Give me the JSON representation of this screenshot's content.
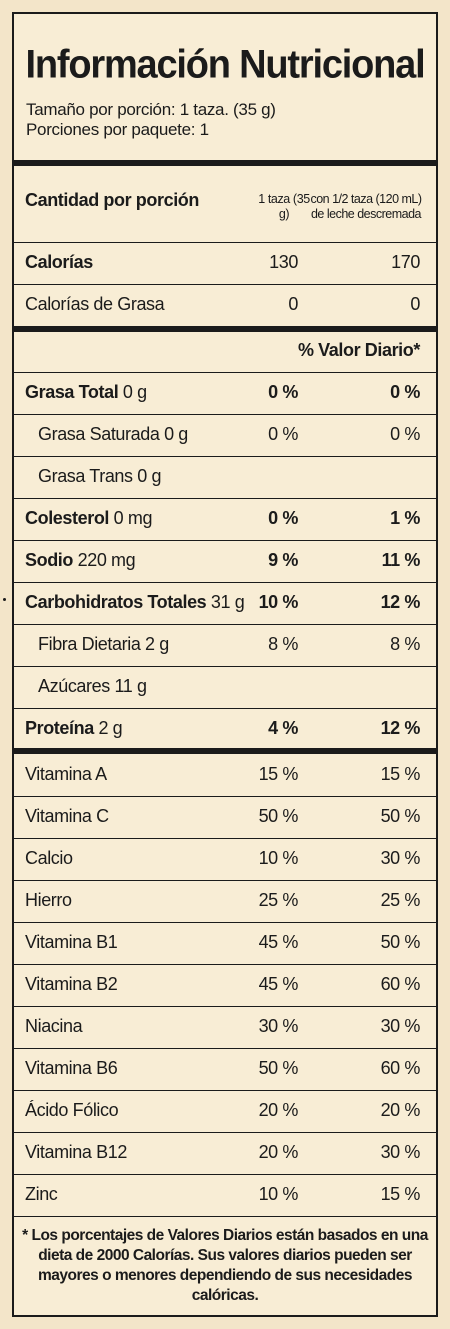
{
  "title": "Información Nutricional",
  "serving": {
    "size": "Tamaño por porción: 1 taza. (35 g)",
    "per_package": "Porciones por paquete: 1"
  },
  "header": {
    "label": "Cantidad por porción",
    "col1": "1 taza (35 g)",
    "col2": "con 1/2 taza (120 mL) de leche descremada"
  },
  "calories": [
    {
      "label": "Calorías",
      "c1": "130",
      "c2": "170",
      "bold": true
    },
    {
      "label": "Calorías de Grasa",
      "c1": "0",
      "c2": "0",
      "bold": false
    }
  ],
  "daily_value_header": "% Valor Diario*",
  "nutrients": [
    {
      "name": "Grasa Total",
      "amount": "0 g",
      "c1": "0 %",
      "c2": "0 %",
      "bold": true,
      "indent": false
    },
    {
      "name": "Grasa Saturada",
      "amount": "0 g",
      "c1": "0 %",
      "c2": "0 %",
      "bold": false,
      "indent": true
    },
    {
      "name": "Grasa Trans",
      "amount": "0 g",
      "c1": "",
      "c2": "",
      "bold": false,
      "indent": true
    },
    {
      "name": "Colesterol",
      "amount": "0 mg",
      "c1": "0 %",
      "c2": "1 %",
      "bold": true,
      "indent": false
    },
    {
      "name": "Sodio",
      "amount": "220 mg",
      "c1": "9 %",
      "c2": "11 %",
      "bold": true,
      "indent": false
    },
    {
      "name": "Carbohidratos Totales",
      "amount": "31 g",
      "c1": "10 %",
      "c2": "12 %",
      "bold": true,
      "indent": false
    },
    {
      "name": "Fibra Dietaria",
      "amount": "2 g",
      "c1": "8 %",
      "c2": "8 %",
      "bold": false,
      "indent": true
    },
    {
      "name": "Azúcares",
      "amount": "11 g",
      "c1": "",
      "c2": "",
      "bold": false,
      "indent": true
    },
    {
      "name": "Proteína",
      "amount": "2 g",
      "c1": "4 %",
      "c2": "12 %",
      "bold": true,
      "indent": false
    }
  ],
  "vitamins": [
    {
      "name": "Vitamina  A",
      "c1": "15 %",
      "c2": "15 %"
    },
    {
      "name": "Vitamina C",
      "c1": "50 %",
      "c2": "50 %"
    },
    {
      "name": "Calcio",
      "c1": "10 %",
      "c2": "30 %"
    },
    {
      "name": "Hierro",
      "c1": "25 %",
      "c2": "25 %"
    },
    {
      "name": "Vitamina B1",
      "c1": "45 %",
      "c2": "50 %"
    },
    {
      "name": "Vitamina B2",
      "c1": "45 %",
      "c2": "60 %"
    },
    {
      "name": "Niacina",
      "c1": "30 %",
      "c2": "30 %"
    },
    {
      "name": "Vitamina B6",
      "c1": "50 %",
      "c2": "60 %"
    },
    {
      "name": "Ácido Fólico",
      "c1": "20 %",
      "c2": "20 %"
    },
    {
      "name": "Vitamina B12",
      "c1": "20 %",
      "c2": "30 %"
    },
    {
      "name": "Zinc",
      "c1": "10 %",
      "c2": "15 %"
    }
  ],
  "footnote": "* Los porcentajes de Valores Diarios están basados en una dieta de 2000 Calorías.  Sus valores diarios pueden ser mayores o menores dependiendo de sus necesidades calóricas."
}
